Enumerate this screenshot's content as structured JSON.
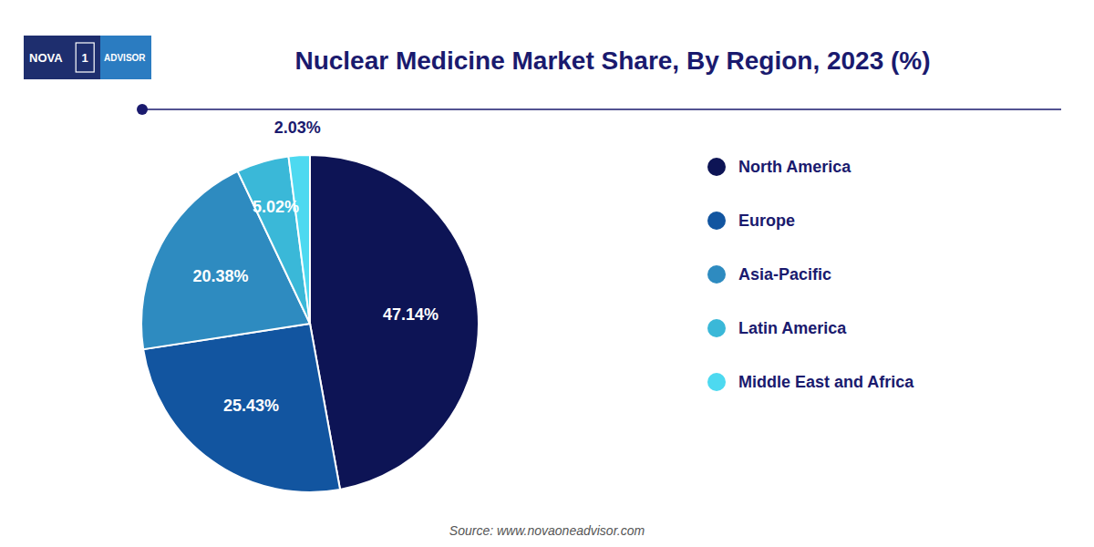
{
  "chart_data": {
    "type": "pie",
    "title": "Nuclear Medicine Market Share, By Region, 2023 (%)",
    "categories": [
      "North America",
      "Europe",
      "Asia-Pacific",
      "Latin America",
      "Middle East and Africa"
    ],
    "values": [
      47.14,
      25.43,
      20.38,
      5.02,
      2.03
    ],
    "value_labels": [
      "47.14%",
      "25.43%",
      "20.38%",
      "5.02%",
      "2.03%"
    ],
    "colors": [
      "#0d1455",
      "#1255a0",
      "#2e8bc0",
      "#3ab8d8",
      "#4dd9f0"
    ],
    "data_labels": true,
    "legend": "right",
    "annotations": [
      "Source: www.novaoneadvisor.com"
    ],
    "logo": [
      "NOVA",
      "1",
      "ADVISOR"
    ]
  }
}
